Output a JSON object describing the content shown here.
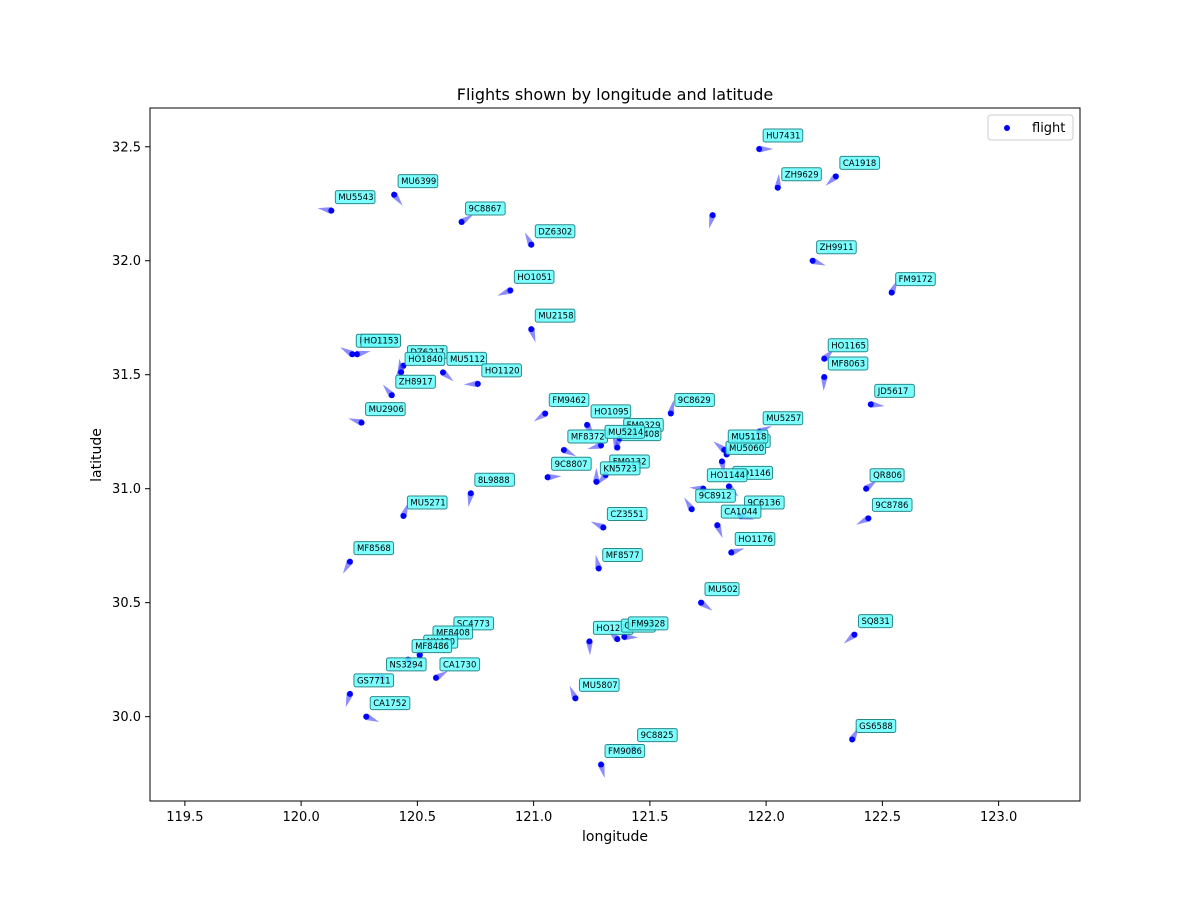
{
  "chart_data": {
    "type": "scatter",
    "title": "Flights shown by longitude and latitude",
    "xlabel": "longitude",
    "ylabel": "latitude",
    "xlim": [
      119.35,
      123.35
    ],
    "ylim": [
      29.63,
      32.67
    ],
    "xticks": [
      "119.5",
      "120.0",
      "120.5",
      "121.0",
      "121.5",
      "122.0",
      "122.5",
      "123.0"
    ],
    "yticks": [
      "30.0",
      "30.5",
      "31.0",
      "31.5",
      "32.0",
      "32.5"
    ],
    "grid": false,
    "legend": {
      "placement": "top-right",
      "entries": [
        "flight"
      ]
    },
    "colors": {
      "point": "#0000ff",
      "arrow": "#4040ff",
      "label_bg": "#66ffff",
      "label_border": "#2a8a8a"
    },
    "series": [
      {
        "name": "flight",
        "points": [
          {
            "label": "HU7431",
            "lon": 121.97,
            "lat": 32.49
          },
          {
            "label": "CA1918",
            "lon": 122.3,
            "lat": 32.37
          },
          {
            "label": "ZH9629",
            "lon": 122.05,
            "lat": 32.32
          },
          {
            "label": "MU6399",
            "lon": 120.4,
            "lat": 32.29
          },
          {
            "label": "MU5543",
            "lon": 120.13,
            "lat": 32.22
          },
          {
            "label": "9C8867",
            "lon": 120.69,
            "lat": 32.17
          },
          {
            "label": "",
            "lon": 121.77,
            "lat": 32.2
          },
          {
            "label": "DZ6302",
            "lon": 120.99,
            "lat": 32.07
          },
          {
            "label": "ZH9911",
            "lon": 122.2,
            "lat": 32.0
          },
          {
            "label": "HO1051",
            "lon": 120.9,
            "lat": 31.87
          },
          {
            "label": "FM9172",
            "lon": 122.54,
            "lat": 31.86
          },
          {
            "label": "MU2158",
            "lon": 120.99,
            "lat": 31.7
          },
          {
            "label": "MU2157",
            "lon": 120.22,
            "lat": 31.59
          },
          {
            "label": "HO1153",
            "lon": 120.24,
            "lat": 31.59
          },
          {
            "label": "DZ6217",
            "lon": 120.44,
            "lat": 31.54
          },
          {
            "label": "HO1840",
            "lon": 120.43,
            "lat": 31.51
          },
          {
            "label": "MU5112",
            "lon": 120.61,
            "lat": 31.51
          },
          {
            "label": "HO1120",
            "lon": 120.76,
            "lat": 31.46
          },
          {
            "label": "HO1165",
            "lon": 122.25,
            "lat": 31.57
          },
          {
            "label": "MF8063",
            "lon": 122.25,
            "lat": 31.49
          },
          {
            "label": "ZH8917",
            "lon": 120.39,
            "lat": 31.41
          },
          {
            "label": "JD5617",
            "lon": 122.45,
            "lat": 31.37
          },
          {
            "label": "FM9462",
            "lon": 121.05,
            "lat": 31.33
          },
          {
            "label": "9C8629",
            "lon": 121.59,
            "lat": 31.33
          },
          {
            "label": "HO1095",
            "lon": 121.23,
            "lat": 31.28
          },
          {
            "label": "MU2906",
            "lon": 120.26,
            "lat": 31.29
          },
          {
            "label": "MU5257",
            "lon": 121.97,
            "lat": 31.25
          },
          {
            "label": "FM9329",
            "lon": 121.37,
            "lat": 31.22
          },
          {
            "label": "MU5408",
            "lon": 121.36,
            "lat": 31.18
          },
          {
            "label": "MF8372",
            "lon": 121.13,
            "lat": 31.17
          },
          {
            "label": "MU5214",
            "lon": 121.29,
            "lat": 31.19
          },
          {
            "label": "CA1972",
            "lon": 121.83,
            "lat": 31.15
          },
          {
            "label": "MU5060",
            "lon": 121.81,
            "lat": 31.12
          },
          {
            "label": "MU5118",
            "lon": 121.82,
            "lat": 31.17
          },
          {
            "label": "9C8807",
            "lon": 121.06,
            "lat": 31.05
          },
          {
            "label": "FM9132",
            "lon": 121.31,
            "lat": 31.06
          },
          {
            "label": "KN5723",
            "lon": 121.27,
            "lat": 31.03
          },
          {
            "label": "HO1146",
            "lon": 121.84,
            "lat": 31.01
          },
          {
            "label": "HO1144",
            "lon": 121.73,
            "lat": 31.0
          },
          {
            "label": "QR806",
            "lon": 122.43,
            "lat": 31.0
          },
          {
            "label": "8L9888",
            "lon": 120.73,
            "lat": 30.98
          },
          {
            "label": "9C8912",
            "lon": 121.68,
            "lat": 30.91
          },
          {
            "label": "9C6136",
            "lon": 121.89,
            "lat": 30.88
          },
          {
            "label": "9C8786",
            "lon": 122.44,
            "lat": 30.87
          },
          {
            "label": "MU5271",
            "lon": 120.44,
            "lat": 30.88
          },
          {
            "label": "CA1044",
            "lon": 121.79,
            "lat": 30.84
          },
          {
            "label": "CZ3551",
            "lon": 121.3,
            "lat": 30.83
          },
          {
            "label": "HO1176",
            "lon": 121.85,
            "lat": 30.72
          },
          {
            "label": "MF8568",
            "lon": 120.21,
            "lat": 30.68
          },
          {
            "label": "MF8577",
            "lon": 121.28,
            "lat": 30.65
          },
          {
            "label": "MU502",
            "lon": 121.72,
            "lat": 30.5
          },
          {
            "label": "SC4773",
            "lon": 120.64,
            "lat": 30.35
          },
          {
            "label": "MF8408",
            "lon": 120.55,
            "lat": 30.31
          },
          {
            "label": "HO1277",
            "lon": 121.24,
            "lat": 30.33
          },
          {
            "label": "QR890",
            "lon": 121.36,
            "lat": 30.34
          },
          {
            "label": "FM9328",
            "lon": 121.39,
            "lat": 30.35
          },
          {
            "label": "SQ831",
            "lon": 122.38,
            "lat": 30.36
          },
          {
            "label": "NX420",
            "lon": 120.51,
            "lat": 30.27
          },
          {
            "label": "MF8486",
            "lon": 120.46,
            "lat": 30.25
          },
          {
            "label": "NS3294",
            "lon": 120.35,
            "lat": 30.17
          },
          {
            "label": "CA1730",
            "lon": 120.58,
            "lat": 30.17
          },
          {
            "label": "GS7711",
            "lon": 120.21,
            "lat": 30.1
          },
          {
            "label": "MU5807",
            "lon": 121.18,
            "lat": 30.08
          },
          {
            "label": "CA1752",
            "lon": 120.28,
            "lat": 30.0
          },
          {
            "label": "9C8825",
            "lon": 121.43,
            "lat": 29.86
          },
          {
            "label": "GS6588",
            "lon": 122.37,
            "lat": 29.9
          },
          {
            "label": "FM9086",
            "lon": 121.29,
            "lat": 29.79
          }
        ]
      }
    ]
  }
}
